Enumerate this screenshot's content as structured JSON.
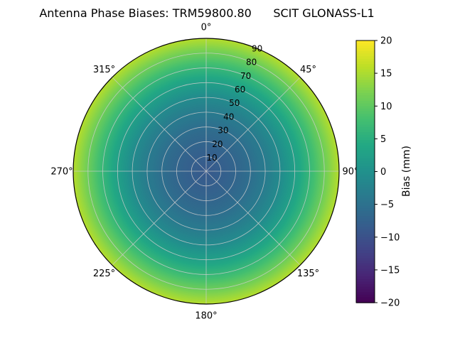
{
  "figure": {
    "title": "Antenna Phase Biases: TRM59800.80      SCIT GLONASS-L1",
    "background": "#ffffff"
  },
  "chart_data": {
    "type": "heatmap",
    "projection": "polar",
    "title": "Antenna Phase Biases: TRM59800.80      SCIT GLONASS-L1",
    "theta_zero_location": "N",
    "theta_direction": "clockwise",
    "theta_ticks": [
      {
        "angle_deg": 0,
        "label": "0°"
      },
      {
        "angle_deg": 45,
        "label": "45°"
      },
      {
        "angle_deg": 90,
        "label": "90°"
      },
      {
        "angle_deg": 135,
        "label": "135°"
      },
      {
        "angle_deg": 180,
        "label": "180°"
      },
      {
        "angle_deg": 225,
        "label": "225°"
      },
      {
        "angle_deg": 270,
        "label": "270°"
      },
      {
        "angle_deg": 315,
        "label": "315°"
      }
    ],
    "radial_ticks": {
      "label_angle_deg": 22.5,
      "values": [
        10,
        20,
        30,
        40,
        50,
        60,
        70,
        80,
        90
      ],
      "max": 90
    },
    "radial_profile": {
      "zenith_deg": [
        0,
        10,
        20,
        30,
        40,
        50,
        60,
        70,
        80,
        90
      ],
      "bias_mm": [
        -9,
        -8,
        -7,
        -5.5,
        -3.5,
        -1,
        2.5,
        6.5,
        11,
        15.5
      ]
    },
    "azimuthal_dependence": "uniform",
    "grid": true,
    "grid_color": "#cccccc",
    "spine_color": "#000000",
    "colorbar": {
      "label": "Bias (mm)",
      "vmin": -20,
      "vmax": 20,
      "ticks": [
        20,
        15,
        10,
        5,
        0,
        -5,
        -10,
        -15,
        -20
      ]
    },
    "colormap": {
      "name": "viridis",
      "stops": [
        [
          0.0,
          "#440154"
        ],
        [
          0.1,
          "#482475"
        ],
        [
          0.2,
          "#414487"
        ],
        [
          0.3,
          "#355f8d"
        ],
        [
          0.4,
          "#2a788e"
        ],
        [
          0.5,
          "#21918c"
        ],
        [
          0.6,
          "#22a884"
        ],
        [
          0.7,
          "#44bf70"
        ],
        [
          0.8,
          "#7ad151"
        ],
        [
          0.9,
          "#bddf26"
        ],
        [
          1.0,
          "#fde725"
        ]
      ]
    }
  }
}
